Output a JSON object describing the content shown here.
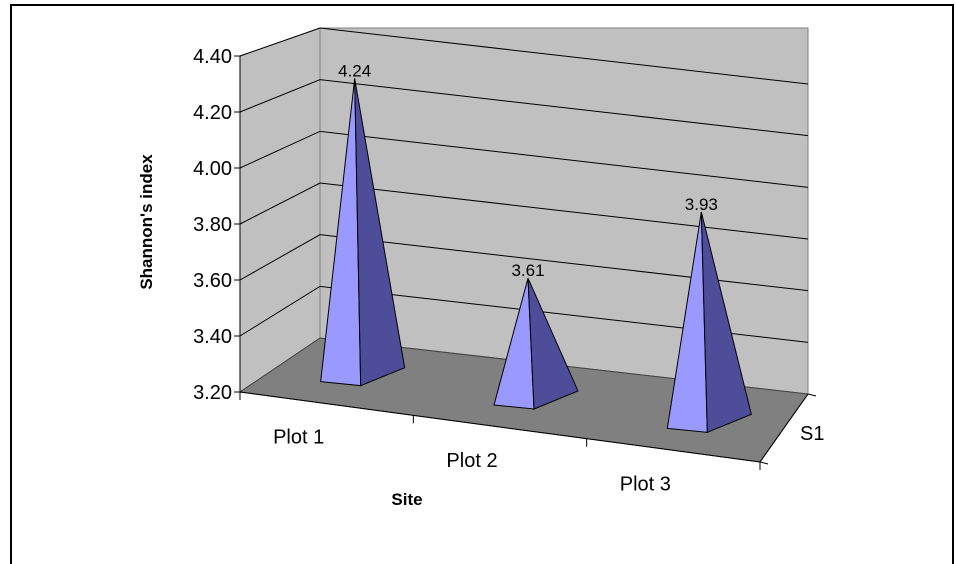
{
  "chart_data": {
    "type": "bar",
    "style": "3d-pyramid",
    "categories": [
      "Plot 1",
      "Plot 2",
      "Plot 3"
    ],
    "series": [
      {
        "name": "S1",
        "values": [
          4.24,
          3.61,
          3.93
        ]
      }
    ],
    "data_labels": [
      "4.24",
      "3.61",
      "3.93"
    ],
    "xlabel": "Site",
    "ylabel": "Shannon's index",
    "ylim": [
      3.2,
      4.4
    ],
    "yticks": [
      "3.20",
      "3.40",
      "3.60",
      "3.80",
      "4.00",
      "4.20",
      "4.40"
    ],
    "grid": true,
    "colors": {
      "wall": "#c0c0c0",
      "floor": "#808080",
      "pyramid_front": "#9999ff",
      "pyramid_side": "#4d4d99",
      "gridline": "#000000"
    }
  }
}
